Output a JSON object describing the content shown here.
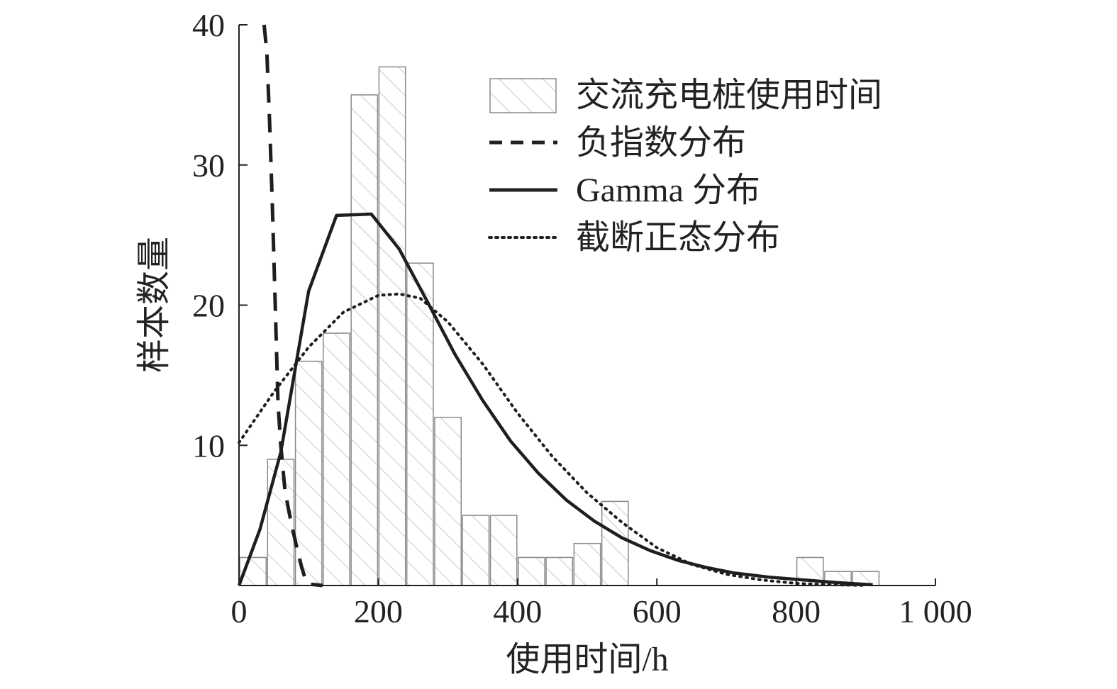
{
  "chart_data": {
    "type": "bar",
    "title": "",
    "xlabel": "使用时间/h",
    "ylabel": "样本数量",
    "xlim": [
      0,
      1000
    ],
    "ylim": [
      0,
      40
    ],
    "x_ticks": [
      0,
      200,
      400,
      600,
      800,
      1000
    ],
    "x_tick_labels": [
      "0",
      "200",
      "400",
      "600",
      "800",
      "1 000"
    ],
    "y_ticks": [
      10,
      20,
      30,
      40
    ],
    "y_tick_labels": [
      "10",
      "20",
      "30",
      "40"
    ],
    "grid": false,
    "legend_position": "top-right",
    "bar_width": 40,
    "histogram": {
      "name": "交流充电桩使用时间",
      "x": [
        0,
        40,
        80,
        120,
        160,
        200,
        240,
        280,
        320,
        360,
        400,
        440,
        480,
        520,
        560,
        600,
        640,
        680,
        720,
        760,
        800,
        840,
        880
      ],
      "values": [
        2,
        9,
        16,
        18,
        35,
        37,
        23,
        12,
        5,
        5,
        2,
        2,
        3,
        6,
        0,
        0,
        0,
        0,
        0,
        0,
        2,
        1,
        1
      ]
    },
    "series": [
      {
        "name": "负指数分布",
        "style": "dashed",
        "x": [
          36,
          40,
          44,
          48,
          52,
          56,
          60,
          66,
          72,
          78,
          84,
          90,
          95,
          100,
          110,
          120
        ],
        "y": [
          40,
          38,
          33,
          27,
          20,
          13,
          10,
          6.8,
          5.2,
          3.8,
          2.5,
          1.3,
          0.5,
          0.1,
          0.05,
          0
        ]
      },
      {
        "name": "Gamma 分布",
        "style": "solid",
        "x": [
          0,
          30,
          60,
          100,
          140,
          190,
          230,
          270,
          310,
          350,
          390,
          430,
          470,
          510,
          550,
          590,
          630,
          670,
          710,
          760,
          810,
          860,
          910
        ],
        "y": [
          0,
          4,
          9.5,
          21,
          26.4,
          26.5,
          24,
          20.3,
          16.5,
          13.2,
          10.3,
          8,
          6.1,
          4.6,
          3.4,
          2.5,
          1.8,
          1.3,
          0.9,
          0.6,
          0.4,
          0.2,
          0.05
        ]
      },
      {
        "name": "截断正态分布",
        "style": "dotted",
        "x": [
          0,
          50,
          100,
          150,
          200,
          230,
          260,
          300,
          350,
          400,
          450,
          500,
          550,
          600,
          650,
          700,
          750,
          800,
          850,
          900
        ],
        "y": [
          10.2,
          13.8,
          17,
          19.5,
          20.7,
          20.8,
          20.5,
          18.8,
          15.8,
          12.3,
          9.2,
          6.6,
          4.5,
          2.7,
          1.5,
          0.8,
          0.4,
          0.15,
          0.05,
          0.01
        ]
      }
    ]
  }
}
